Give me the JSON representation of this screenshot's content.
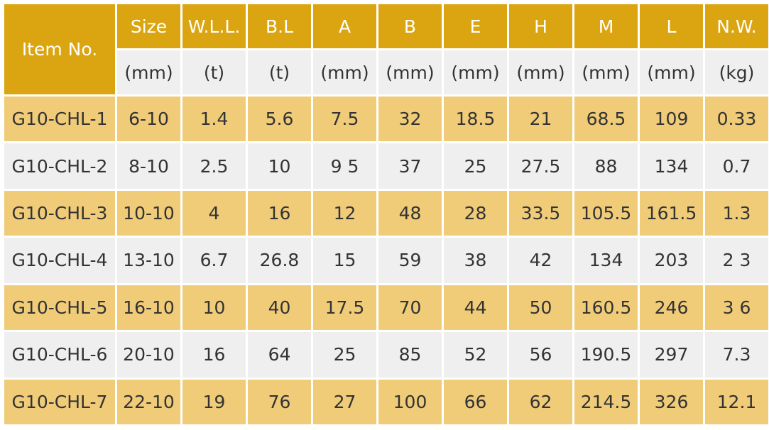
{
  "table": {
    "item_header": "Item No.",
    "columns": [
      {
        "name": "Size",
        "unit": "(mm)"
      },
      {
        "name": "W.L.L.",
        "unit": "(t)"
      },
      {
        "name": "B.L",
        "unit": "(t)"
      },
      {
        "name": "A",
        "unit": "(mm)"
      },
      {
        "name": "B",
        "unit": "(mm)"
      },
      {
        "name": "E",
        "unit": "(mm)"
      },
      {
        "name": "H",
        "unit": "(mm)"
      },
      {
        "name": "M",
        "unit": "(mm)"
      },
      {
        "name": "L",
        "unit": "(mm)"
      },
      {
        "name": "N.W.",
        "unit": "(kg)"
      }
    ],
    "rows": [
      {
        "item": "G10-CHL-1",
        "values": [
          "6-10",
          "1.4",
          "5.6",
          "7.5",
          "32",
          "18.5",
          "21",
          "68.5",
          "109",
          "0.33"
        ]
      },
      {
        "item": "G10-CHL-2",
        "values": [
          "8-10",
          "2.5",
          "10",
          "9 5",
          "37",
          "25",
          "27.5",
          "88",
          "134",
          "0.7"
        ]
      },
      {
        "item": "G10-CHL-3",
        "values": [
          "10-10",
          "4",
          "16",
          "12",
          "48",
          "28",
          "33.5",
          "105.5",
          "161.5",
          "1.3"
        ]
      },
      {
        "item": "G10-CHL-4",
        "values": [
          "13-10",
          "6.7",
          "26.8",
          "15",
          "59",
          "38",
          "42",
          "134",
          "203",
          "2 3"
        ]
      },
      {
        "item": "G10-CHL-5",
        "values": [
          "16-10",
          "10",
          "40",
          "17.5",
          "70",
          "44",
          "50",
          "160.5",
          "246",
          "3 6"
        ]
      },
      {
        "item": "G10-CHL-6",
        "values": [
          "20-10",
          "16",
          "64",
          "25",
          "85",
          "52",
          "56",
          "190.5",
          "297",
          "7.3"
        ]
      },
      {
        "item": "G10-CHL-7",
        "values": [
          "22-10",
          "19",
          "76",
          "27",
          "100",
          "66",
          "62",
          "214.5",
          "326",
          "12.1"
        ]
      }
    ]
  },
  "colors": {
    "header_gold": "#daa510",
    "row_gold": "#f0cc79",
    "row_grey": "#efefef",
    "text": "#333333",
    "header_text": "#ffffff"
  }
}
